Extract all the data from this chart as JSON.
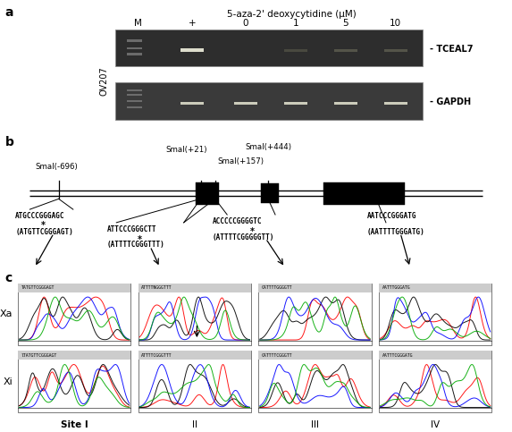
{
  "panel_a": {
    "title": "5-aza-2' deoxycytidine (μM)",
    "lane_labels": [
      "M",
      "+",
      "0",
      "1",
      "5",
      "10"
    ],
    "cell_line": "OV207",
    "gene_labels": [
      "TCEAL7",
      "GAPDH"
    ]
  },
  "panel_b": {
    "smai_labels": [
      "SmaI(-696)",
      "SmaI(+21)",
      "SmaI(+157)",
      "SmaI(+444)"
    ],
    "seq1_line1": "ATGCCCGGGAGC",
    "seq1_line2": "(ATGTTCGGGAGT)",
    "seq2_line1": "ATTCCCGGGCTT",
    "seq2_line2": "(ATTTTCGGGTTT)",
    "seq3_line1": "ACCCCCGGGGTC",
    "seq3_line2": "(ATTTTCGGGGGTT)",
    "seq4_line1": "AATCCCGGGATG",
    "seq4_line2": "(AATTTTGGGATG)"
  },
  "panel_c": {
    "xa_seqs": [
      "TATGTTCGGGAGT",
      "ATTTTNGGGTTT",
      "CATTTTGGGGTT",
      "AATTTGGGATG"
    ],
    "xi_seqs": [
      "lTATGTTCGGGAGT",
      "ATTTTCGGGTTT",
      "CATTTTCGGGTT",
      "AATTTCGGGATG"
    ],
    "site_labels": [
      "Site I",
      "II",
      "III",
      "IV"
    ]
  }
}
